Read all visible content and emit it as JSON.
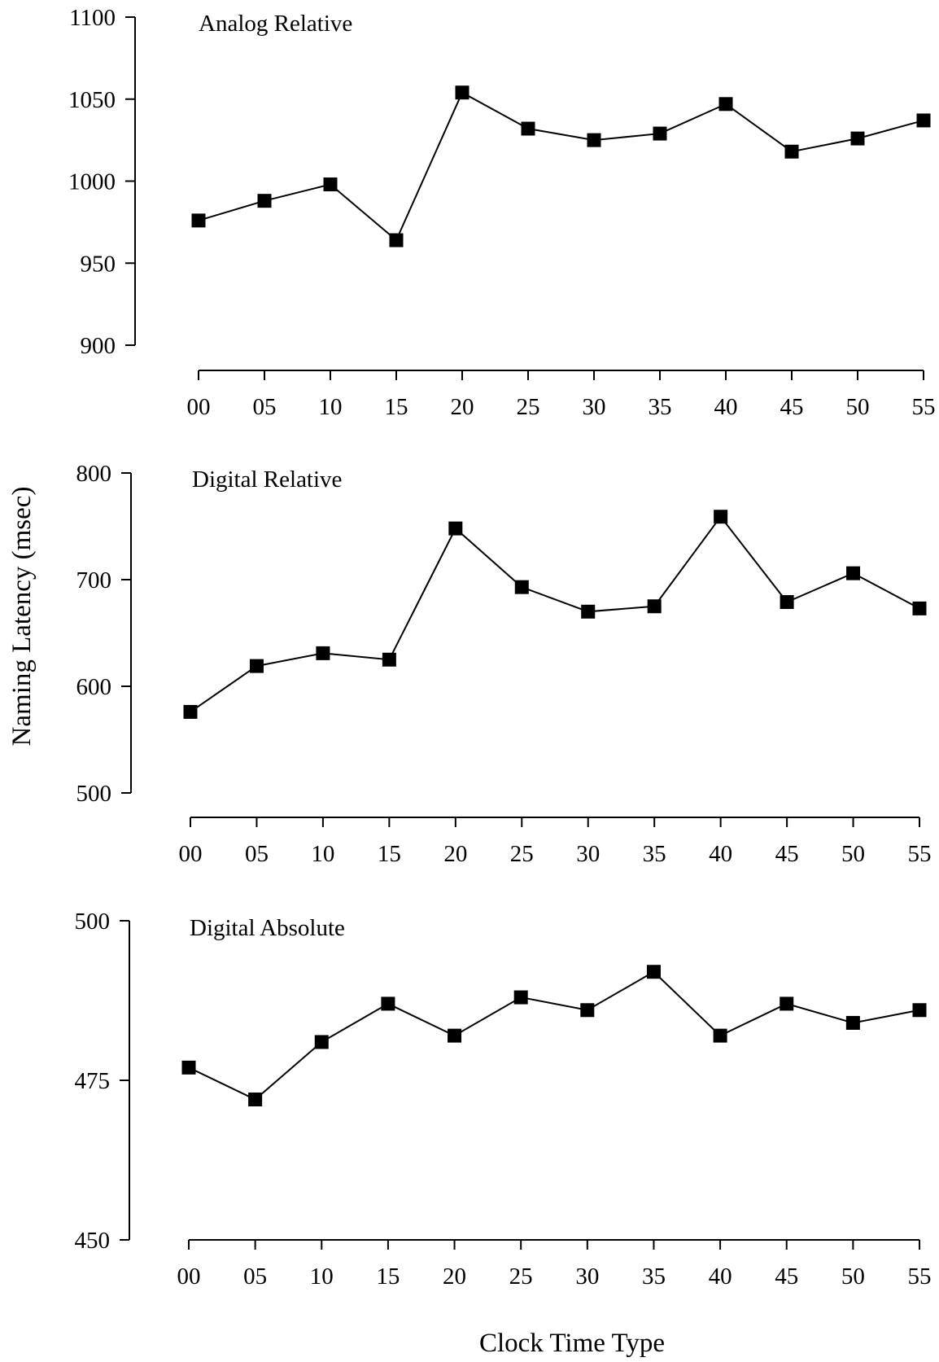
{
  "figure": {
    "ylabel": "Naming Latency (msec)",
    "xlabel": "Clock Time Type"
  },
  "chart_data": [
    {
      "type": "line",
      "title": "Analog Relative",
      "categories": [
        "00",
        "05",
        "10",
        "15",
        "20",
        "25",
        "30",
        "35",
        "40",
        "45",
        "50",
        "55"
      ],
      "values": [
        976,
        988,
        998,
        964,
        1054,
        1032,
        1025,
        1029,
        1047,
        1018,
        1026,
        1037
      ],
      "ylim": [
        900,
        1100
      ],
      "yticks": [
        900,
        950,
        1000,
        1050,
        1100
      ],
      "xlabel": "",
      "ylabel": "",
      "marker": "square",
      "grid": false,
      "color": "#000000"
    },
    {
      "type": "line",
      "title": "Digital Relative",
      "categories": [
        "00",
        "05",
        "10",
        "15",
        "20",
        "25",
        "30",
        "35",
        "40",
        "45",
        "50",
        "55"
      ],
      "values": [
        576,
        619,
        631,
        625,
        748,
        693,
        670,
        675,
        759,
        679,
        706,
        673
      ],
      "ylim": [
        500,
        800
      ],
      "yticks": [
        500,
        600,
        700,
        800
      ],
      "xlabel": "",
      "ylabel": "",
      "marker": "square",
      "grid": false,
      "color": "#000000"
    },
    {
      "type": "line",
      "title": "Digital Absolute",
      "categories": [
        "00",
        "05",
        "10",
        "15",
        "20",
        "25",
        "30",
        "35",
        "40",
        "45",
        "50",
        "55"
      ],
      "values": [
        477,
        472,
        481,
        487,
        482,
        488,
        486,
        492,
        482,
        487,
        484,
        486
      ],
      "ylim": [
        450,
        500
      ],
      "yticks": [
        450,
        475,
        500
      ],
      "xlabel": "",
      "ylabel": "",
      "marker": "square",
      "grid": false,
      "color": "#000000"
    }
  ]
}
